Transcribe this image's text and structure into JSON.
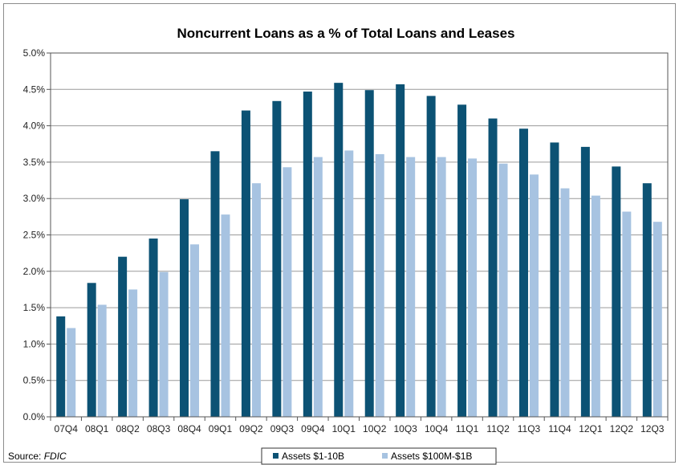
{
  "chart_data": {
    "type": "bar",
    "title": "Noncurrent Loans as a % of Total Loans and Leases",
    "xlabel": "",
    "ylabel": "",
    "ylim": [
      0,
      5.0
    ],
    "yticks": [
      "0.0%",
      "0.5%",
      "1.0%",
      "1.5%",
      "2.0%",
      "2.5%",
      "3.0%",
      "3.5%",
      "4.0%",
      "4.5%",
      "5.0%"
    ],
    "grid": true,
    "legend_position": "bottom-center",
    "categories": [
      "07Q4",
      "08Q1",
      "08Q2",
      "08Q3",
      "08Q4",
      "09Q1",
      "09Q2",
      "09Q3",
      "09Q4",
      "10Q1",
      "10Q2",
      "10Q3",
      "10Q4",
      "11Q1",
      "11Q2",
      "11Q3",
      "11Q4",
      "12Q1",
      "12Q2",
      "12Q3"
    ],
    "series": [
      {
        "name": "Assets $1-10B",
        "color": "#0c5274",
        "values": [
          1.38,
          1.84,
          2.2,
          2.45,
          2.99,
          3.65,
          4.21,
          4.34,
          4.47,
          4.59,
          4.49,
          4.57,
          4.41,
          4.29,
          4.1,
          3.96,
          3.77,
          3.71,
          3.44,
          3.21
        ]
      },
      {
        "name": "Assets $100M-$1B",
        "color": "#a7c3e1",
        "values": [
          1.22,
          1.54,
          1.75,
          1.99,
          2.37,
          2.78,
          3.21,
          3.43,
          3.57,
          3.66,
          3.61,
          3.57,
          3.57,
          3.55,
          3.48,
          3.33,
          3.14,
          3.04,
          2.82,
          2.68
        ]
      }
    ]
  },
  "source": {
    "label": "Source:",
    "value": "FDIC"
  }
}
